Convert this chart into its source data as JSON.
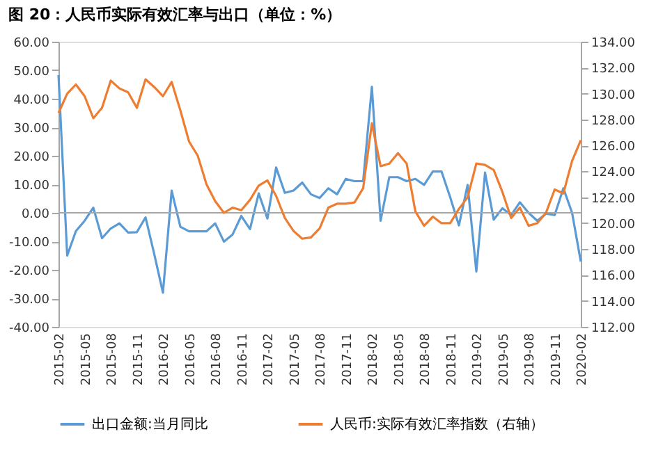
{
  "chart_data": {
    "type": "line",
    "title": "图 20：人民币实际有效汇率与出口（单位：%）",
    "categories": [
      "2015-02",
      null,
      null,
      "2015-05",
      null,
      null,
      "2015-08",
      null,
      null,
      "2015-11",
      null,
      null,
      "2016-02",
      null,
      null,
      "2016-05",
      null,
      null,
      "2016-08",
      null,
      null,
      "2016-11",
      null,
      null,
      "2017-02",
      null,
      null,
      "2017-05",
      null,
      null,
      "2017-08",
      null,
      null,
      "2017-11",
      null,
      null,
      "2018-02",
      null,
      null,
      "2018-05",
      null,
      null,
      "2018-08",
      null,
      null,
      "2018-11",
      null,
      null,
      "2019-02",
      null,
      null,
      "2019-05",
      null,
      null,
      "2019-08",
      null,
      null,
      "2019-11",
      null,
      null,
      "2020-02"
    ],
    "series": [
      {
        "name": "出口金额:当月同比",
        "color": "#5b9bd5",
        "values": [
          48.3,
          -15.0,
          -6.4,
          -2.8,
          1.8,
          -8.9,
          -5.5,
          -3.7,
          -6.9,
          -6.8,
          -1.6,
          -14.5,
          -28.0,
          7.8,
          -4.9,
          -6.5,
          -6.5,
          -6.5,
          -3.7,
          -10.1,
          -7.6,
          -1.1,
          -5.7,
          6.8,
          -2.0,
          15.9,
          7.0,
          7.8,
          10.6,
          6.5,
          5.2,
          8.6,
          6.5,
          11.9,
          11.1,
          11.1,
          44.2,
          -2.8,
          12.5,
          12.5,
          11.1,
          11.9,
          9.8,
          14.5,
          14.5,
          5.4,
          -4.4,
          9.8,
          -20.6,
          14.1,
          -2.4,
          1.6,
          -0.8,
          3.7,
          0.0,
          -2.8,
          -0.3,
          -0.8,
          8.6,
          0.0,
          -17.1
        ]
      },
      {
        "name": "人民币:实际有效汇率指数（右轴）",
        "color": "#ed7d31",
        "axis": "y2",
        "values": [
          128.5,
          130.0,
          130.7,
          129.8,
          128.1,
          128.9,
          131.0,
          130.4,
          130.1,
          128.9,
          131.1,
          130.5,
          129.8,
          130.9,
          128.7,
          126.3,
          125.2,
          123.0,
          121.7,
          120.8,
          121.2,
          121.0,
          121.8,
          122.9,
          123.3,
          122.1,
          120.4,
          119.4,
          118.8,
          118.9,
          119.6,
          121.2,
          121.5,
          121.5,
          121.6,
          122.7,
          127.7,
          124.4,
          124.6,
          125.4,
          124.6,
          120.9,
          119.8,
          120.5,
          120.0,
          120.0,
          121.1,
          122.0,
          124.6,
          124.5,
          124.1,
          122.4,
          120.4,
          121.2,
          119.8,
          120.0,
          120.8,
          122.6,
          122.3,
          124.8,
          126.4
        ]
      }
    ],
    "ylim": [
      -40,
      60
    ],
    "yticks": [
      {
        "value": -40,
        "label": "-40.00"
      },
      {
        "value": -30,
        "label": "-30.00"
      },
      {
        "value": -20,
        "label": "-20.00"
      },
      {
        "value": -10,
        "label": "-10.00"
      },
      {
        "value": 0,
        "label": "0.00"
      },
      {
        "value": 10,
        "label": "10.00"
      },
      {
        "value": 20,
        "label": "20.00"
      },
      {
        "value": 30,
        "label": "30.00"
      },
      {
        "value": 40,
        "label": "40.00"
      },
      {
        "value": 50,
        "label": "50.00"
      },
      {
        "value": 60,
        "label": "60.00"
      }
    ],
    "y2lim": [
      112,
      134
    ],
    "y2ticks": [
      {
        "value": 112,
        "label": "112.00"
      },
      {
        "value": 114,
        "label": "114.00"
      },
      {
        "value": 116,
        "label": "116.00"
      },
      {
        "value": 118,
        "label": "118.00"
      },
      {
        "value": 120,
        "label": "120.00"
      },
      {
        "value": 122,
        "label": "122.00"
      },
      {
        "value": 124,
        "label": "124.00"
      },
      {
        "value": 126,
        "label": "126.00"
      },
      {
        "value": 128,
        "label": "128.00"
      },
      {
        "value": 130,
        "label": "130.00"
      },
      {
        "value": 132,
        "label": "132.00"
      },
      {
        "value": 134,
        "label": "134.00"
      }
    ],
    "ref_lines": [
      {
        "axis": "y",
        "value": 0,
        "color": "#a6a6a6"
      }
    ],
    "legend": "bottom",
    "grid": false
  }
}
